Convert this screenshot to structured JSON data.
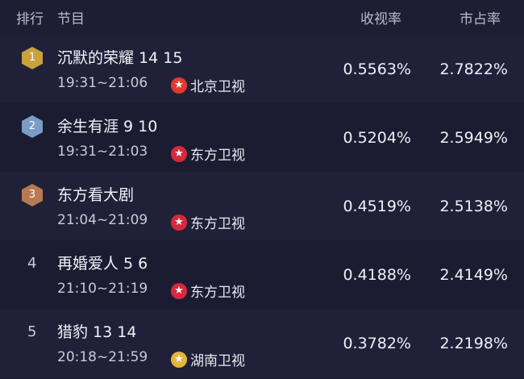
{
  "header": {
    "rank": "排行",
    "program": "节目",
    "rating": "收视率",
    "share": "市占率"
  },
  "colors": {
    "gold": "#c9a23c",
    "silver": "#7a9cc6",
    "bronze": "#b77a52",
    "dongfang": "#d8283c",
    "beijing": "#e03a2e",
    "hunan": "#e6b53a"
  },
  "rows": [
    {
      "rank": "1",
      "title": "沉默的荣耀 14 15",
      "time": "19:31~21:06",
      "channel": "北京卫视",
      "channel_icon": "beijing-tv-logo",
      "rating": "0.5563%",
      "share": "2.7822%"
    },
    {
      "rank": "2",
      "title": "余生有涯 9 10",
      "time": "19:31~21:03",
      "channel": "东方卫视",
      "channel_icon": "dragon-tv-logo",
      "rating": "0.5204%",
      "share": "2.5949%"
    },
    {
      "rank": "3",
      "title": "东方看大剧",
      "time": "21:04~21:09",
      "channel": "东方卫视",
      "channel_icon": "dragon-tv-logo",
      "rating": "0.4519%",
      "share": "2.5138%"
    },
    {
      "rank": "4",
      "title": "再婚爱人 5 6",
      "time": "21:10~21:19",
      "channel": "东方卫视",
      "channel_icon": "dragon-tv-logo",
      "rating": "0.4188%",
      "share": "2.4149%"
    },
    {
      "rank": "5",
      "title": "猎豹 13 14",
      "time": "20:18~21:59",
      "channel": "湖南卫视",
      "channel_icon": "hunan-tv-logo",
      "rating": "0.3782%",
      "share": "2.2198%"
    }
  ]
}
